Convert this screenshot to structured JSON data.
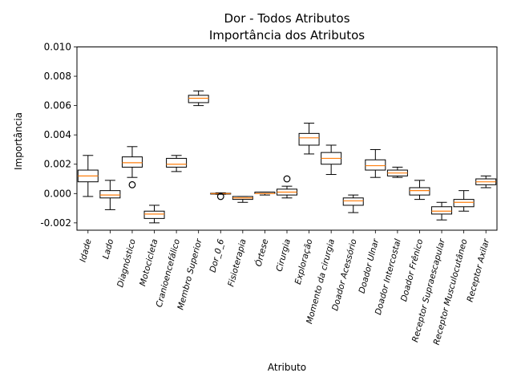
{
  "chart_data": {
    "type": "box",
    "title_line1": "Dor - Todos Atributos",
    "title_line2": "Importância dos Atributos",
    "xlabel": "Atributo",
    "ylabel": "Importância",
    "ylim": [
      -0.0025,
      0.01
    ],
    "yticks": [
      "-0.002",
      "0.000",
      "0.002",
      "0.004",
      "0.006",
      "0.008",
      "0.010"
    ],
    "categories": [
      "Idade",
      "Lado",
      "Diagnóstico",
      "Motocicleta",
      "Cranioencefálico",
      "Membro Superior",
      "Dor_0_6",
      "Fisioterapia",
      "Órtese",
      "Cirurgia",
      "Exploração",
      "Momento da cirurgia",
      "Doador Acessório",
      "Doador Ulnar",
      "Doador Intercostal",
      "Doador Frênico",
      "Receptor Supraescapular",
      "Receptor Musculocutâneo",
      "Receptor Axilar"
    ],
    "boxes": [
      {
        "min": -0.0002,
        "q1": 0.0008,
        "median": 0.0012,
        "q3": 0.0016,
        "max": 0.0026,
        "outliers": []
      },
      {
        "min": -0.0011,
        "q1": -0.0003,
        "median": -0.0001,
        "q3": 0.0002,
        "max": 0.0009,
        "outliers": []
      },
      {
        "min": 0.0011,
        "q1": 0.0018,
        "median": 0.0021,
        "q3": 0.0025,
        "max": 0.0032,
        "outliers": [
          0.0006
        ]
      },
      {
        "min": -0.002,
        "q1": -0.0017,
        "median": -0.0014,
        "q3": -0.0012,
        "max": -0.0008,
        "outliers": []
      },
      {
        "min": 0.0015,
        "q1": 0.0018,
        "median": 0.002,
        "q3": 0.0024,
        "max": 0.0026,
        "outliers": []
      },
      {
        "min": 0.006,
        "q1": 0.0062,
        "median": 0.0065,
        "q3": 0.0067,
        "max": 0.007,
        "outliers": []
      },
      {
        "min": -5e-05,
        "q1": -2e-05,
        "median": 0.0,
        "q3": 2e-05,
        "max": 5e-05,
        "outliers": [
          -0.0002
        ]
      },
      {
        "min": -0.0006,
        "q1": -0.0004,
        "median": -0.0003,
        "q3": -0.0002,
        "max": -0.0002,
        "outliers": []
      },
      {
        "min": -0.0001,
        "q1": 0.0,
        "median": 0.0,
        "q3": 0.0001,
        "max": 0.0001,
        "outliers": []
      },
      {
        "min": -0.0003,
        "q1": -0.0001,
        "median": 0.0001,
        "q3": 0.0003,
        "max": 0.0005,
        "outliers": [
          0.001
        ]
      },
      {
        "min": 0.0027,
        "q1": 0.0033,
        "median": 0.0038,
        "q3": 0.0041,
        "max": 0.0048,
        "outliers": []
      },
      {
        "min": 0.0013,
        "q1": 0.002,
        "median": 0.0024,
        "q3": 0.0028,
        "max": 0.0033,
        "outliers": []
      },
      {
        "min": -0.0013,
        "q1": -0.0008,
        "median": -0.0005,
        "q3": -0.0003,
        "max": -0.0001,
        "outliers": []
      },
      {
        "min": 0.0011,
        "q1": 0.0016,
        "median": 0.0019,
        "q3": 0.0023,
        "max": 0.003,
        "outliers": []
      },
      {
        "min": 0.0011,
        "q1": 0.0012,
        "median": 0.0014,
        "q3": 0.0016,
        "max": 0.0018,
        "outliers": []
      },
      {
        "min": -0.0004,
        "q1": -0.0001,
        "median": 0.0002,
        "q3": 0.0004,
        "max": 0.0009,
        "outliers": []
      },
      {
        "min": -0.0018,
        "q1": -0.0014,
        "median": -0.0012,
        "q3": -0.0009,
        "max": -0.0006,
        "outliers": []
      },
      {
        "min": -0.0012,
        "q1": -0.0009,
        "median": -0.0006,
        "q3": -0.0004,
        "max": 0.0002,
        "outliers": []
      },
      {
        "min": 0.0004,
        "q1": 0.0006,
        "median": 0.0008,
        "q3": 0.001,
        "max": 0.0012,
        "outliers": []
      }
    ],
    "colors": {
      "box": "#000000",
      "median": "#ff7f0e",
      "background": "#ffffff"
    },
    "grid": false
  }
}
